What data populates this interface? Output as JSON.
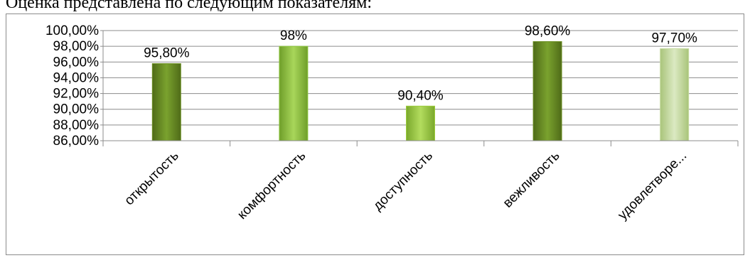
{
  "document": {
    "intro_text": "Оценка представлена по следующим показателям:"
  },
  "chart_data": {
    "type": "bar",
    "title": "",
    "xlabel": "",
    "ylabel": "",
    "categories": [
      "открытость",
      "комфортность",
      "доступность",
      "вежливость",
      "удовлетворе..."
    ],
    "values": [
      95.8,
      98.0,
      90.4,
      98.6,
      97.7
    ],
    "data_labels": [
      "95,80%",
      "98%",
      "90,40%",
      "98,60%",
      "97,70%"
    ],
    "ylim": [
      86,
      100
    ],
    "yticks": [
      86,
      88,
      90,
      92,
      94,
      96,
      98,
      100
    ],
    "ytick_labels": [
      "86,00%",
      "88,00%",
      "90,00%",
      "92,00%",
      "94,00%",
      "96,00%",
      "98,00%",
      "100,00%"
    ],
    "grid": true,
    "legend": "none",
    "bar_colors": [
      "#6b8e23",
      "#8dc63f",
      "#9bcc3a",
      "#6b8e23",
      "#c5dba0"
    ]
  }
}
